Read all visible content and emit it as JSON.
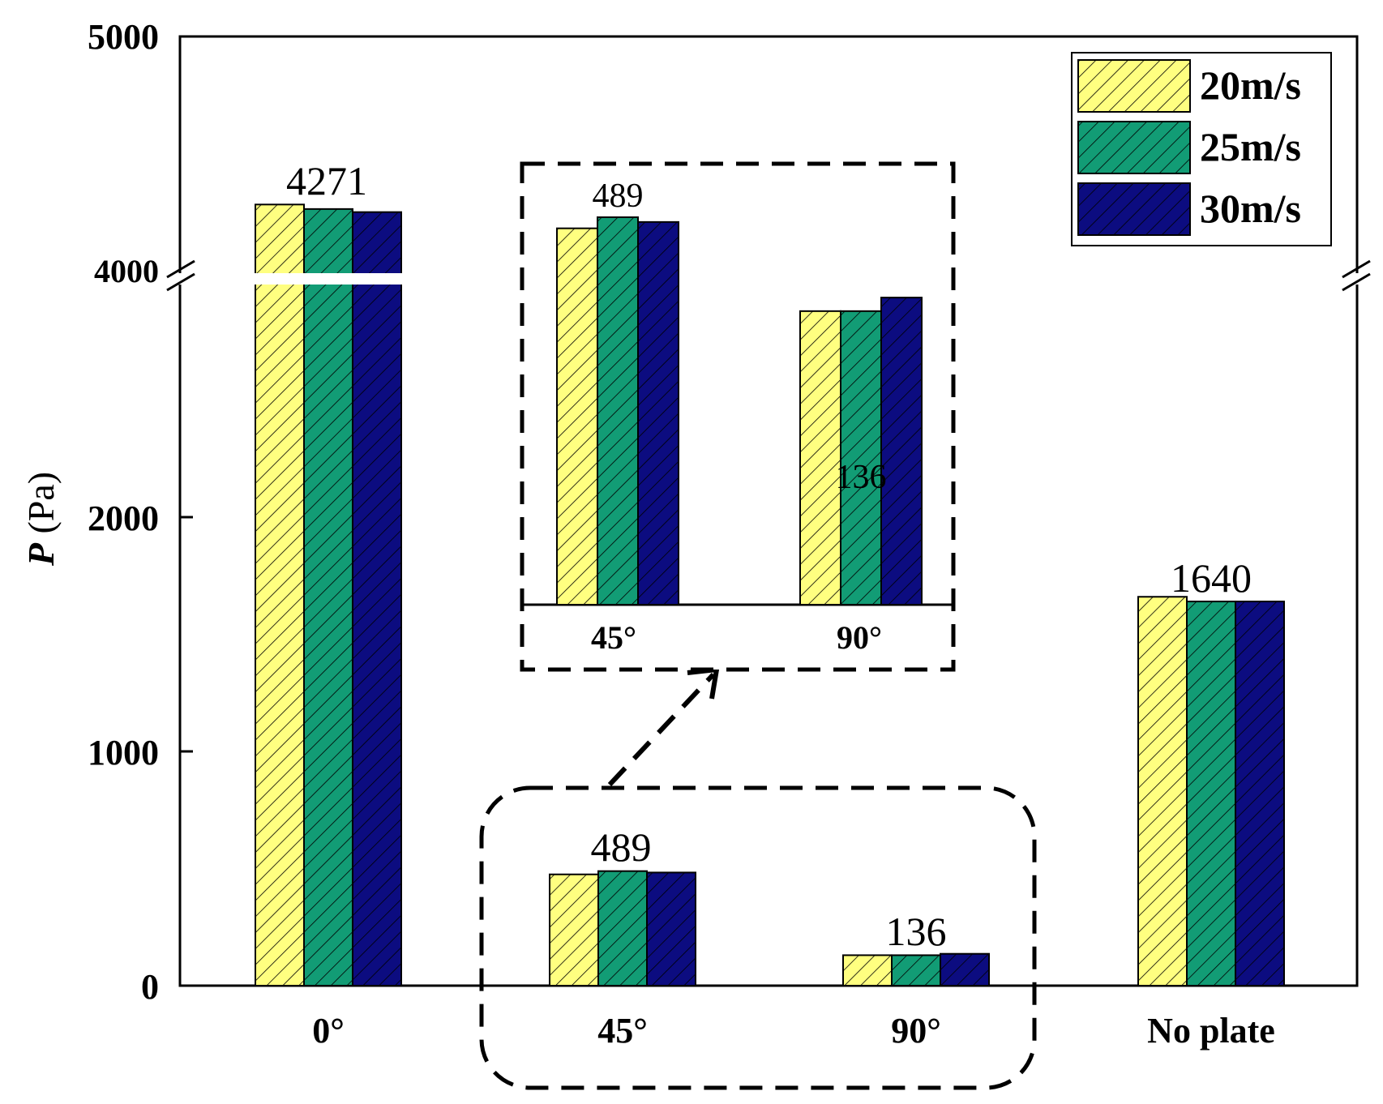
{
  "chart_data": {
    "type": "bar",
    "title": "",
    "ylabel_italic": "P",
    "ylabel_unit": " (Pa)",
    "xlabel": "",
    "categories": [
      "0°",
      "45°",
      "90°",
      "No plate"
    ],
    "series": [
      {
        "name": "20m/s",
        "color": "#ffff80",
        "values": [
          4290,
          475,
          130,
          1660
        ]
      },
      {
        "name": "25m/s",
        "color": "#129c75",
        "values": [
          4271,
          489,
          130,
          1640
        ]
      },
      {
        "name": "30m/s",
        "color": "#0c0c80",
        "values": [
          4258,
          483,
          136,
          1640
        ]
      }
    ],
    "data_labels": [
      "4271",
      "489",
      "136",
      "1640"
    ],
    "y_ticks": [
      "0",
      "1000",
      "2000",
      "4000",
      "5000"
    ],
    "y_axis_break": {
      "lower_range": [
        0,
        3000
      ],
      "upper_range": [
        4000,
        5000
      ]
    },
    "legend_position": "top-right",
    "hatch": "diagonal",
    "inset": {
      "categories": [
        "45°",
        "90°"
      ],
      "series_values": [
        [
          475,
          130
        ],
        [
          489,
          130
        ],
        [
          483,
          136
        ]
      ],
      "data_labels": [
        "489",
        "136"
      ],
      "note": "zoomed view of the dashed region"
    }
  }
}
